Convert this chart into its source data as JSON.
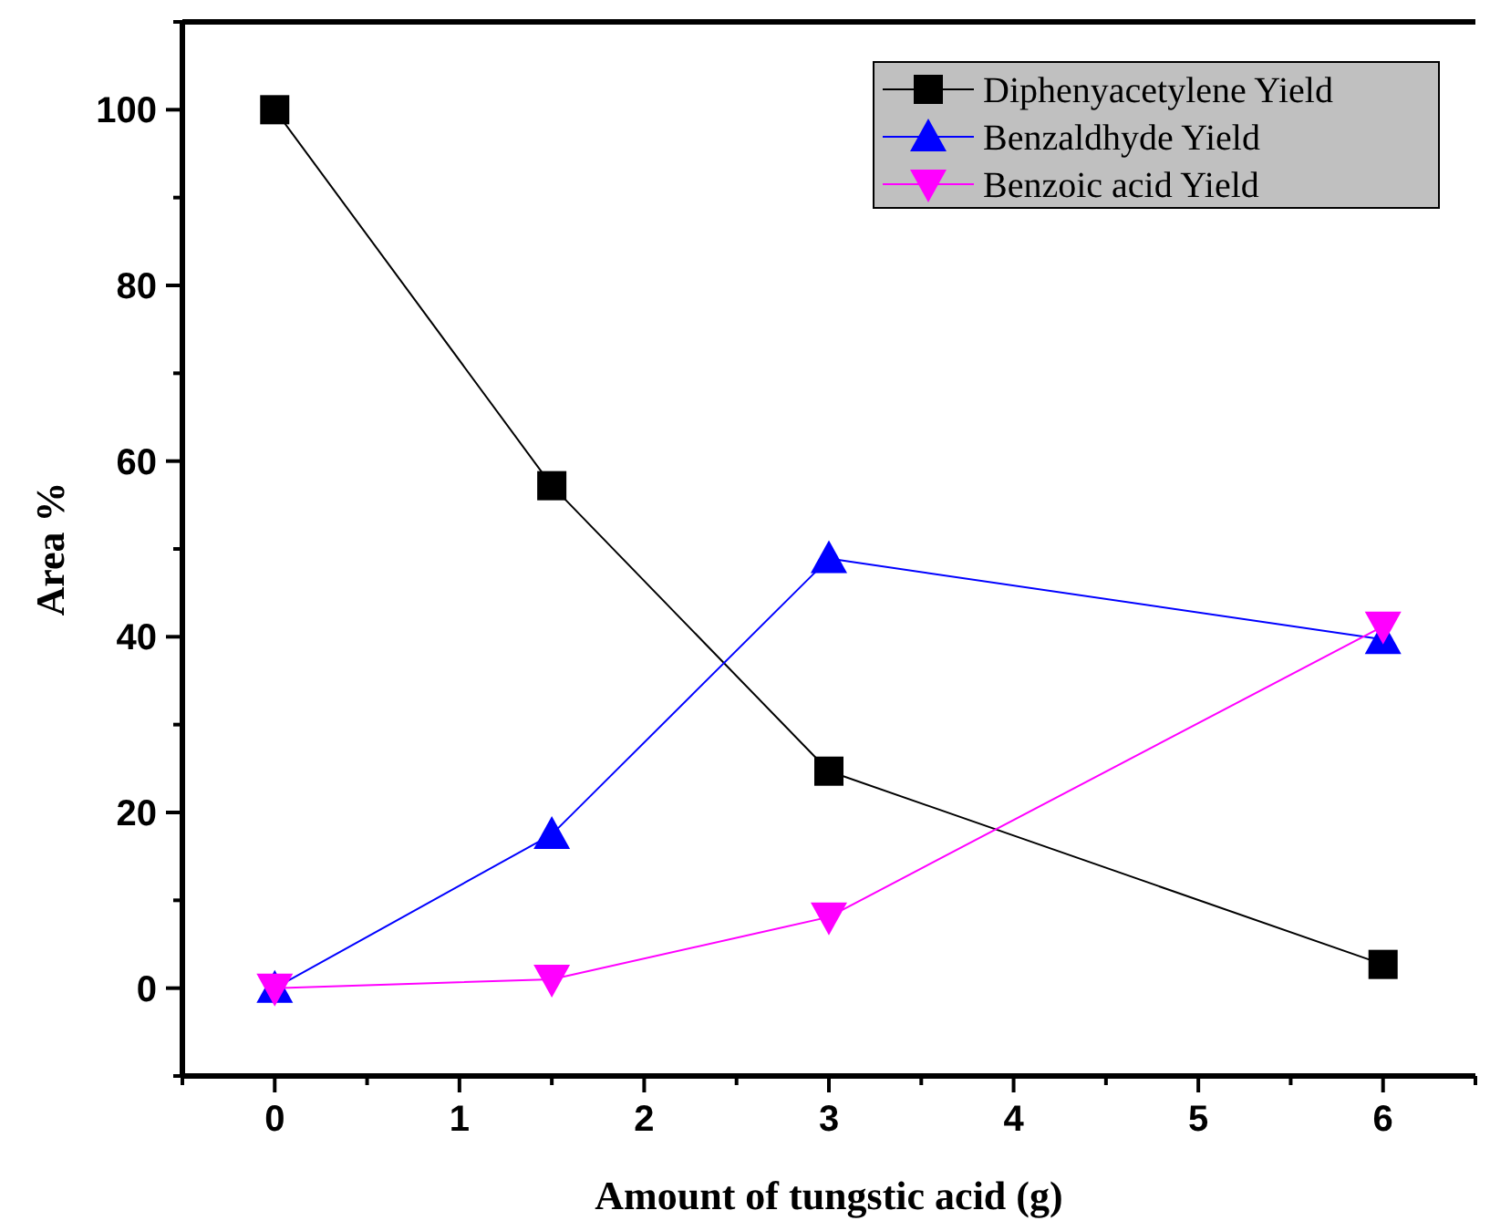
{
  "chart_data": {
    "type": "line",
    "xlabel": "Amount of tungstic acid (g)",
    "ylabel": "Area %",
    "x": [
      0,
      1.5,
      3,
      6
    ],
    "series": [
      {
        "name": "Diphenyacetylene Yield",
        "color": "#000000",
        "marker": "square",
        "values": [
          100,
          57.2,
          24.7,
          2.7
        ]
      },
      {
        "name": "Benzaldhyde Yield",
        "color": "#0000ff",
        "marker": "triangle",
        "values": [
          0,
          17.5,
          48.9,
          39.7
        ]
      },
      {
        "name": "Benzoic acid Yield",
        "color": "#ff00ff",
        "marker": "triangle-down",
        "values": [
          0,
          1,
          8.1,
          41.2
        ]
      }
    ],
    "xlim": [
      -0.5,
      6.5
    ],
    "ylim": [
      -10,
      110
    ],
    "xticks": [
      {
        "value": -0.5,
        "label": null
      },
      0,
      {
        "value": 0.5,
        "label": null
      },
      1,
      {
        "value": 1.5,
        "label": null
      },
      2,
      {
        "value": 2.5,
        "label": null
      },
      3,
      {
        "value": 3.5,
        "label": null
      },
      4,
      {
        "value": 4.5,
        "label": null
      },
      5,
      {
        "value": 5.5,
        "label": null
      },
      6,
      {
        "value": 6.5,
        "label": null
      }
    ],
    "yticks": [
      {
        "value": -10,
        "label": null
      },
      0,
      {
        "value": 10,
        "label": null
      },
      20,
      {
        "value": 30,
        "label": null
      },
      40,
      {
        "value": 50,
        "label": null
      },
      60,
      {
        "value": 70,
        "label": null
      },
      80,
      {
        "value": 90,
        "label": null
      },
      100,
      {
        "value": 110,
        "label": null
      }
    ],
    "legend": "top right",
    "grid": false,
    "line_style": "solid"
  }
}
